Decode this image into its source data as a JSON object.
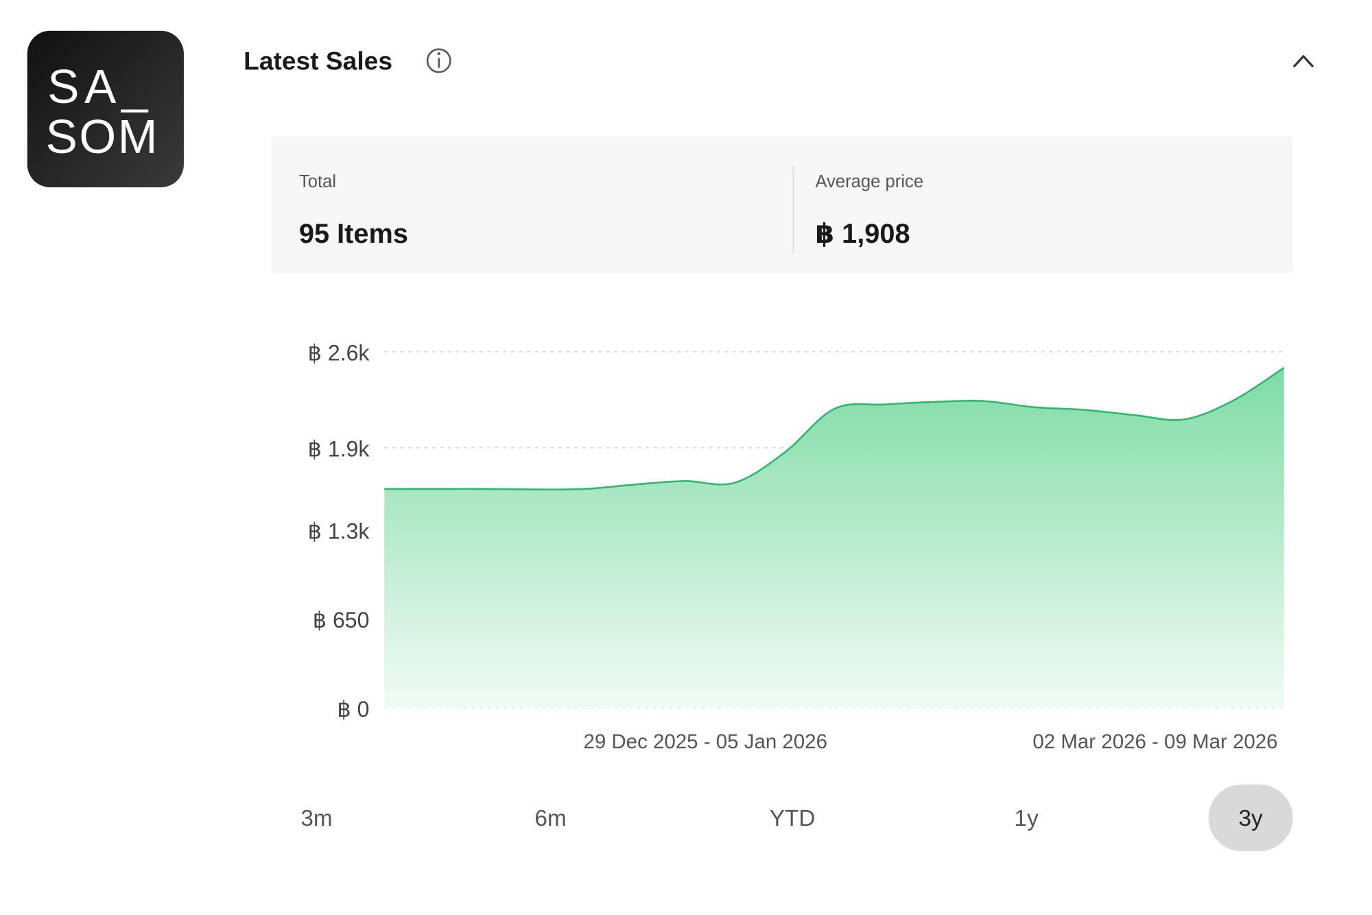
{
  "logo": {
    "lines": [
      "SA_",
      "SOM"
    ]
  },
  "header": {
    "title": "Latest Sales"
  },
  "stats": [
    {
      "label": "Total",
      "value": "95 Items"
    },
    {
      "label": "Average price",
      "value": "฿ 1,908"
    }
  ],
  "chart_data": {
    "type": "area",
    "x": [
      null,
      null,
      null,
      null,
      null,
      null,
      "29 Dec 2025 - 05 Jan 2026",
      null,
      null,
      null,
      null,
      null,
      null,
      null,
      null,
      "02 Mar 2026 - 09 Mar 2026",
      null,
      null,
      null
    ],
    "values": [
      1598,
      1598,
      1598,
      1595,
      1598,
      1630,
      1656,
      1643,
      1862,
      2183,
      2215,
      2234,
      2240,
      2195,
      2176,
      2138,
      2106,
      2247,
      2484
    ],
    "color": "#2bb868",
    "ylim": [
      0,
      2600
    ],
    "yticks": [
      {
        "value": 0,
        "label": "฿ 0"
      },
      {
        "value": 650,
        "label": "฿ 650"
      },
      {
        "value": 1300,
        "label": "฿ 1.3k"
      },
      {
        "value": 1900,
        "label": "฿ 1.9k"
      },
      {
        "value": 2600,
        "label": "฿ 2.6k"
      }
    ],
    "grid": true
  },
  "range_buttons": {
    "options": [
      "3m",
      "6m",
      "YTD",
      "1y",
      "3y"
    ],
    "selected": 4
  }
}
